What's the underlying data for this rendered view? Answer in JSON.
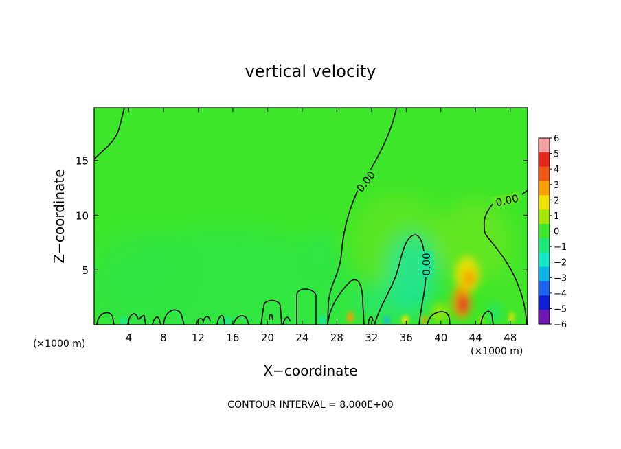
{
  "chart_data": {
    "type": "heatmap",
    "title": "vertical velocity",
    "xlabel": "X−coordinate",
    "ylabel": "Z−coordinate",
    "x_unit": "(×1000 m)",
    "y_unit": "(×1000 m)",
    "xlim": [
      0,
      50
    ],
    "ylim": [
      0,
      19.8
    ],
    "x_ticks": [
      4,
      8,
      12,
      16,
      20,
      24,
      28,
      32,
      36,
      40,
      44,
      48
    ],
    "x_tick_labels": [
      "4",
      "8",
      "12",
      "16",
      "20",
      "24",
      "28",
      "32",
      "36",
      "40",
      "44",
      "48"
    ],
    "y_ticks": [
      5,
      10,
      15
    ],
    "y_tick_labels": [
      "5",
      "10",
      "15"
    ],
    "colorbar": {
      "min": -6,
      "max": 6,
      "tick_labels": [
        "6",
        "5",
        "4",
        "3",
        "2",
        "1",
        "0",
        "−1",
        "−2",
        "−3",
        "−4",
        "−5",
        "−6"
      ],
      "colors": [
        "#f4a0a0",
        "#e8281e",
        "#f05a14",
        "#f8a000",
        "#f0e100",
        "#a5e600",
        "#3ce628",
        "#1ee678",
        "#14e6c8",
        "#0ab4e6",
        "#1e64f0",
        "#0a1ed2",
        "#6e14b4"
      ]
    },
    "contour_labels": [
      "0.00",
      "0.00",
      "0.00"
    ],
    "footer": "CONTOUR INTERVAL = 8.000E+00"
  }
}
